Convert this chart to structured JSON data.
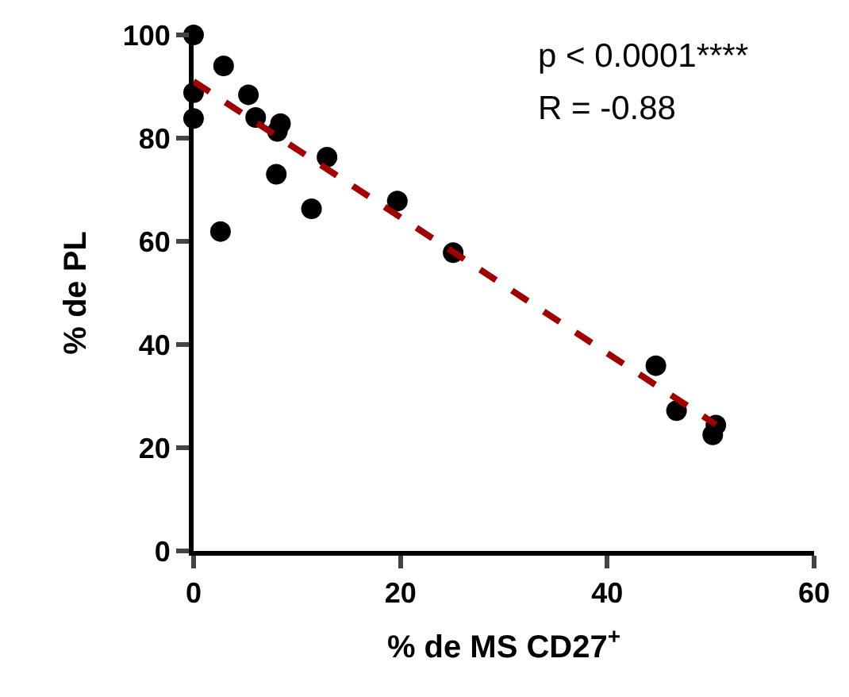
{
  "chart_data": {
    "type": "scatter",
    "xlabel": "% de MS CD27$^{+}$",
    "ylabel": "% de PL",
    "annotations": [
      "p < 0.0001****",
      "R = -0.88"
    ],
    "xlim": [
      0,
      60
    ],
    "xticks": [
      0,
      20,
      40,
      60
    ],
    "ylim": [
      0,
      100
    ],
    "yticks": [
      0,
      20,
      40,
      60,
      80,
      100
    ],
    "grid": false,
    "series": [
      {
        "color": "#000000",
        "marker": "circle",
        "x": [
          0,
          0,
          0,
          2.9,
          5.3,
          6,
          8.4,
          8.1,
          8,
          2.6,
          11.4,
          12.9,
          19.7,
          25.1,
          44.7,
          46.7,
          50.5,
          50.2
        ],
        "values": [
          100,
          88.8,
          83.8,
          94,
          88.4,
          84,
          82.8,
          81.3,
          73,
          61.9,
          66.3,
          76.3,
          67.8,
          57.8,
          35.9,
          27.2,
          24.4,
          22.5
        ]
      },
      {
        "type": "line",
        "color": "#a00000",
        "line_style": "dashed",
        "marker": "none",
        "x": [
          0,
          50.5
        ],
        "values": [
          91,
          24.5
        ]
      }
    ]
  }
}
